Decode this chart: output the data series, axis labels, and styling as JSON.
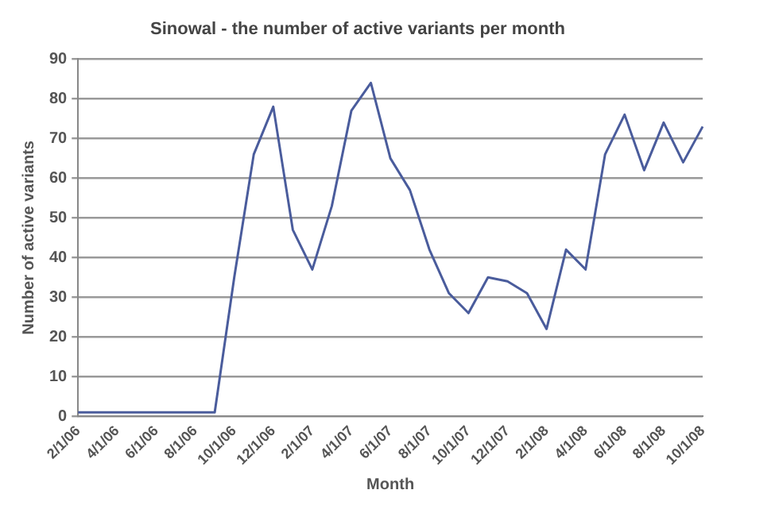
{
  "chart_data": {
    "type": "line",
    "title": "Sinowal - the number of active variants per month",
    "xlabel": "Month",
    "ylabel": "Number of active variants",
    "categories": [
      "2/1/06",
      null,
      "4/1/06",
      null,
      "6/1/06",
      null,
      "8/1/06",
      null,
      "10/1/06",
      null,
      "12/1/06",
      null,
      "2/1/07",
      null,
      "4/1/07",
      null,
      "6/1/07",
      null,
      "8/1/07",
      null,
      "10/1/07",
      null,
      "12/1/07",
      null,
      "2/1/08",
      null,
      "4/1/08",
      null,
      "6/1/08",
      null,
      "8/1/08",
      null,
      "10/1/08"
    ],
    "series": [
      {
        "color": "#4a5c9c",
        "values": [
          1,
          1,
          1,
          1,
          1,
          1,
          1,
          1,
          35,
          66,
          78,
          47,
          37,
          53,
          77,
          84,
          65,
          57,
          42,
          31,
          26,
          35,
          34,
          31,
          22,
          42,
          37,
          66,
          76,
          62,
          74,
          64,
          73
        ]
      }
    ],
    "ylim": [
      0,
      90
    ],
    "yticks": [
      0,
      10,
      20,
      30,
      40,
      50,
      60,
      70,
      80,
      90
    ],
    "grid": "y",
    "legend": false,
    "marker": "none",
    "line_style": "solid"
  }
}
